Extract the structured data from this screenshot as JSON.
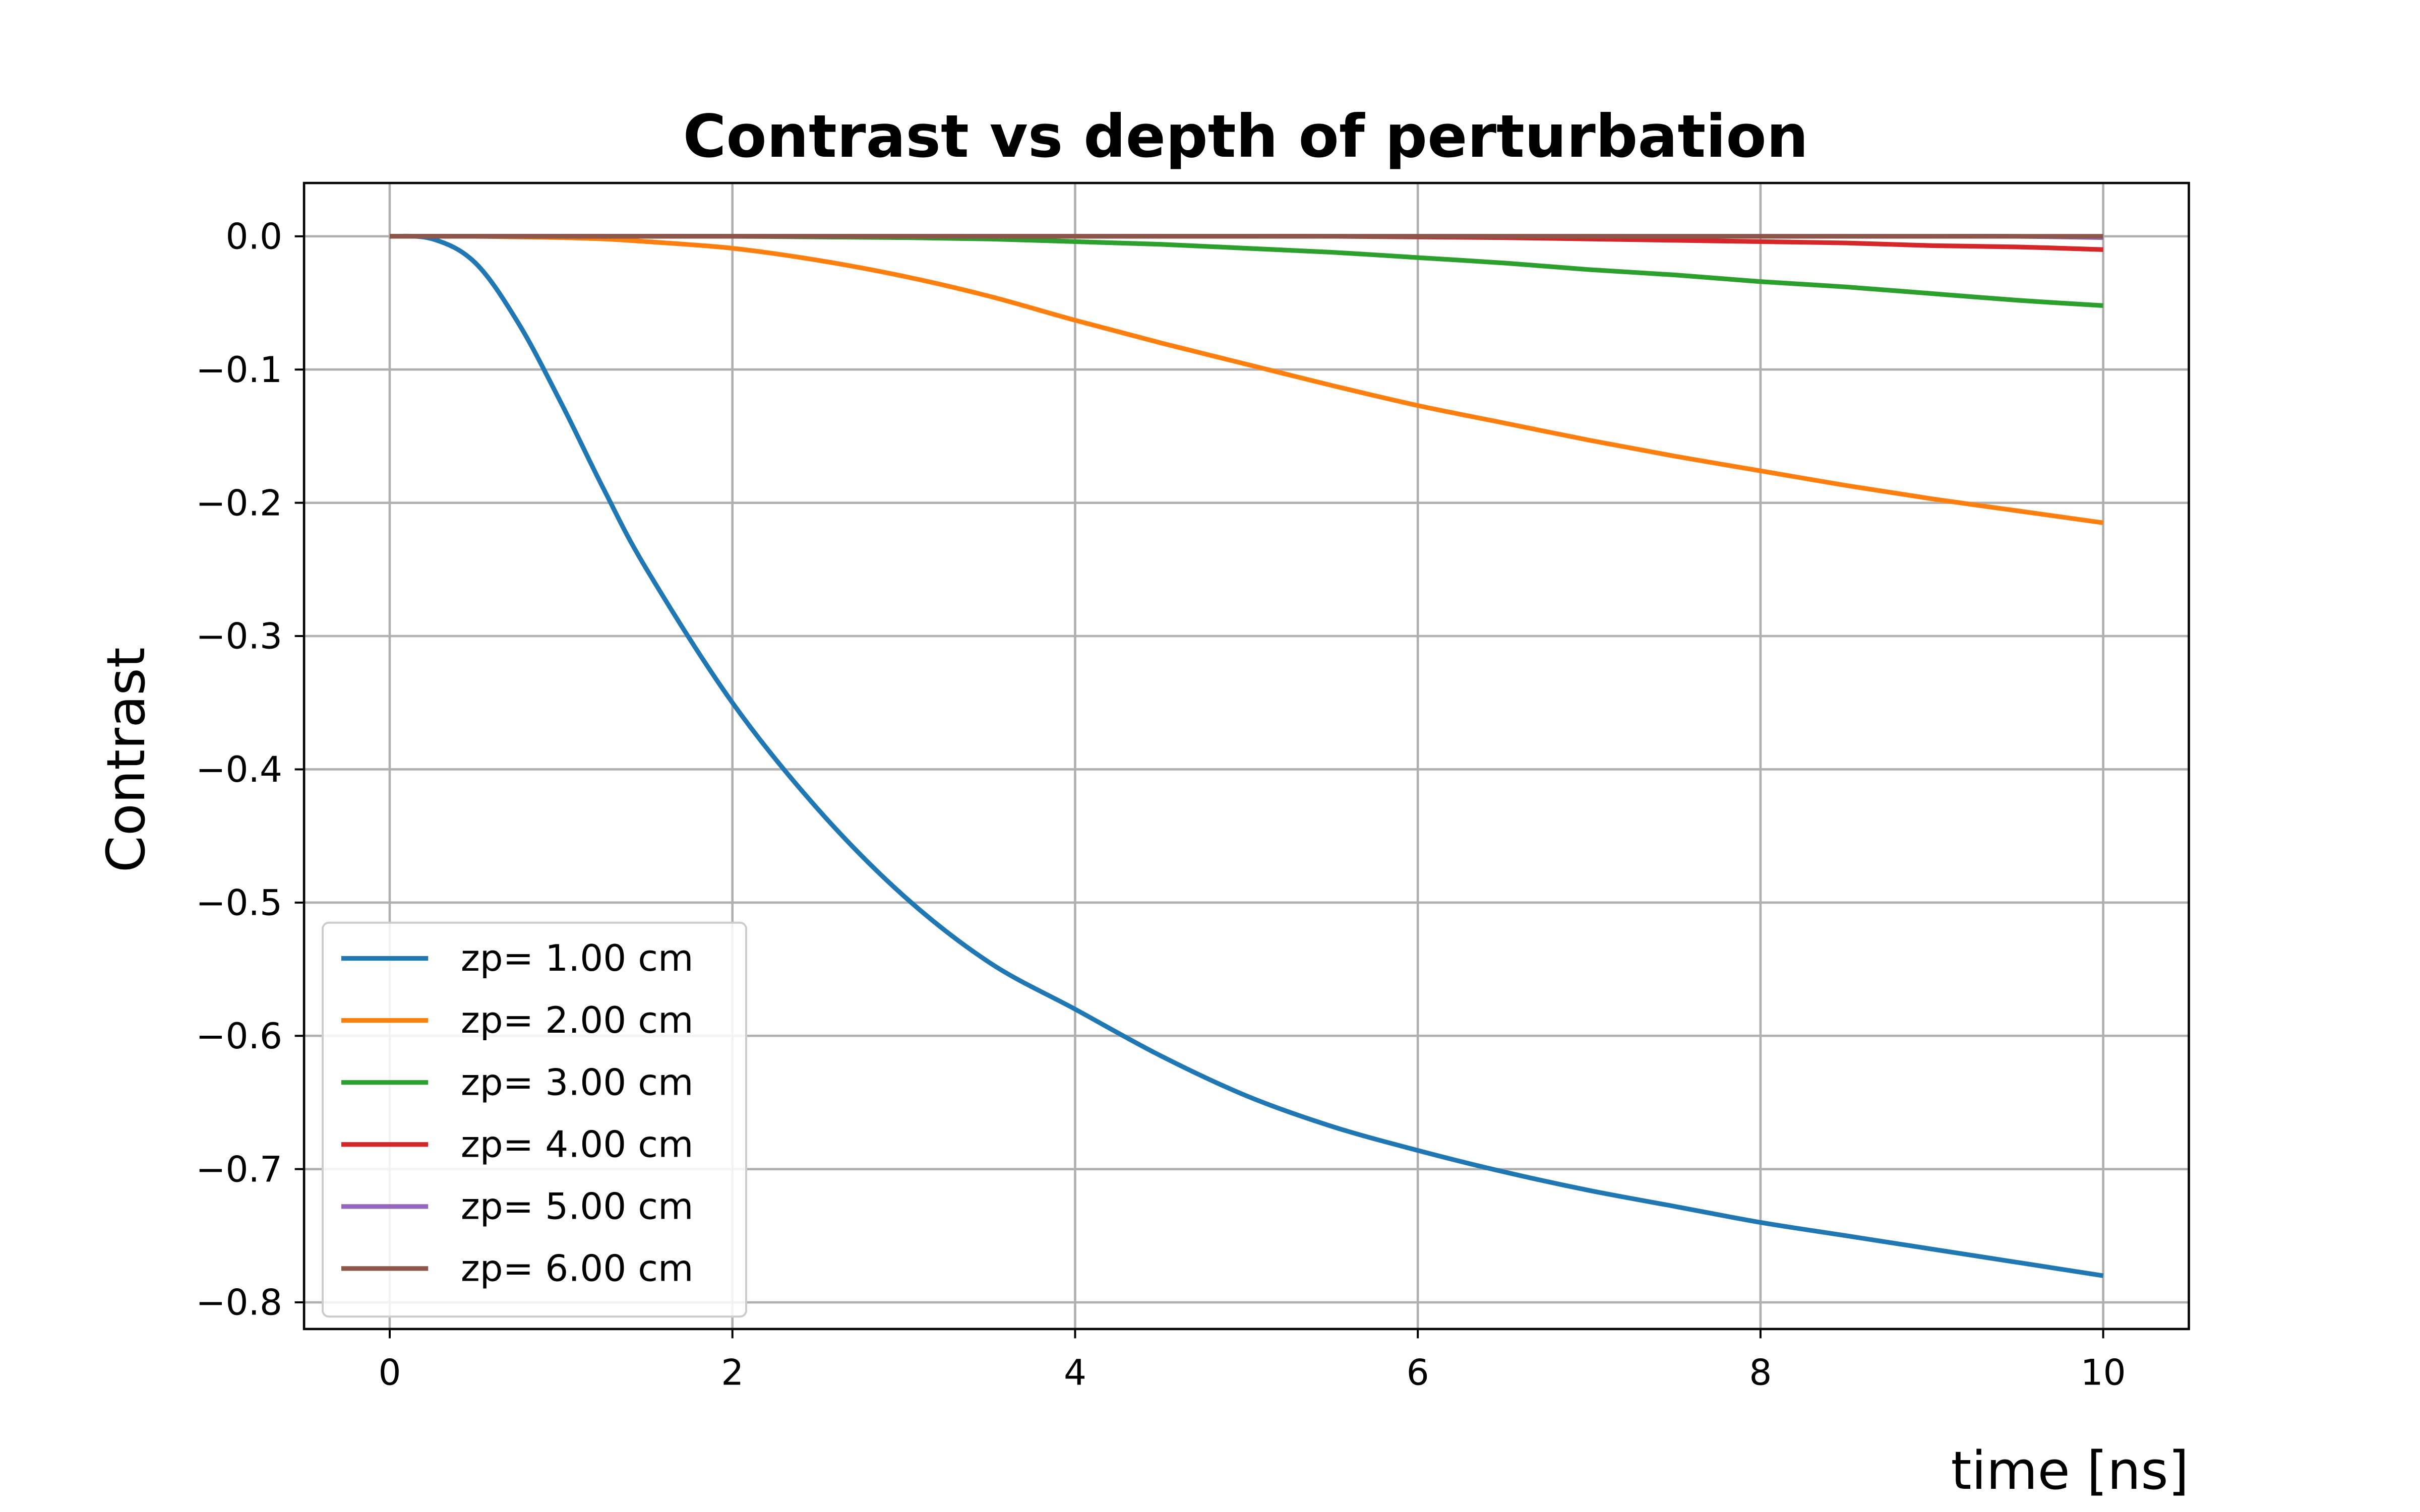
{
  "chart_data": {
    "type": "line",
    "title": "Contrast vs depth of perturbation",
    "xlabel": "time [ns]",
    "ylabel": "Contrast",
    "xlim": [
      -0.5,
      10.5
    ],
    "ylim": [
      -0.82,
      0.04
    ],
    "xticks": [
      0,
      2,
      4,
      6,
      8,
      10
    ],
    "xtick_labels": [
      "0",
      "2",
      "4",
      "6",
      "8",
      "10"
    ],
    "yticks": [
      0.0,
      -0.1,
      -0.2,
      -0.3,
      -0.4,
      -0.5,
      -0.6,
      -0.7,
      -0.8
    ],
    "ytick_labels": [
      "0.0",
      "−0.1",
      "−0.2",
      "−0.3",
      "−0.4",
      "−0.5",
      "−0.6",
      "−0.7",
      "−0.8"
    ],
    "grid": true,
    "legend_position": "lower-left",
    "x": [
      0,
      0.25,
      0.5,
      0.75,
      1,
      1.25,
      1.5,
      2,
      2.5,
      3,
      3.5,
      4,
      4.5,
      5,
      5.5,
      6,
      6.5,
      7,
      7.5,
      8,
      8.5,
      9,
      9.5,
      10
    ],
    "series": [
      {
        "name": "zp= 1.00 cm",
        "color": "#1f77b4",
        "values": [
          0,
          -0.002,
          -0.02,
          -0.065,
          -0.125,
          -0.19,
          -0.25,
          -0.35,
          -0.43,
          -0.495,
          -0.545,
          -0.58,
          -0.615,
          -0.645,
          -0.668,
          -0.686,
          -0.702,
          -0.716,
          -0.728,
          -0.74,
          -0.75,
          -0.76,
          -0.77,
          -0.78
        ]
      },
      {
        "name": "zp= 2.00 cm",
        "color": "#ff7f0e",
        "values": [
          0,
          0,
          0,
          -0.0005,
          -0.001,
          -0.002,
          -0.004,
          -0.009,
          -0.018,
          -0.03,
          -0.045,
          -0.063,
          -0.08,
          -0.096,
          -0.112,
          -0.127,
          -0.14,
          -0.153,
          -0.165,
          -0.176,
          -0.187,
          -0.197,
          -0.206,
          -0.215
        ]
      },
      {
        "name": "zp= 3.00 cm",
        "color": "#2ca02c",
        "values": [
          0,
          0,
          0,
          0,
          0,
          0,
          0,
          0,
          -0.0005,
          -0.001,
          -0.002,
          -0.004,
          -0.006,
          -0.009,
          -0.012,
          -0.016,
          -0.02,
          -0.025,
          -0.029,
          -0.034,
          -0.038,
          -0.043,
          -0.048,
          -0.052
        ]
      },
      {
        "name": "zp= 4.00 cm",
        "color": "#d62728",
        "values": [
          0,
          0,
          0,
          0,
          0,
          0,
          0,
          0,
          0,
          0,
          0,
          0,
          0,
          0,
          0,
          -0.0005,
          -0.001,
          -0.002,
          -0.003,
          -0.004,
          -0.005,
          -0.007,
          -0.008,
          -0.01
        ]
      },
      {
        "name": "zp= 5.00 cm",
        "color": "#9467bd",
        "values": [
          0,
          0,
          0,
          0,
          0,
          0,
          0,
          0,
          0,
          0,
          0,
          0,
          0,
          0,
          0,
          0,
          0,
          0,
          0,
          0,
          0,
          0,
          0,
          -0.001
        ]
      },
      {
        "name": "zp= 6.00 cm",
        "color": "#8c564b",
        "values": [
          0,
          0,
          0,
          0,
          0,
          0,
          0,
          0,
          0,
          0,
          0,
          0,
          0,
          0,
          0,
          0,
          0,
          0,
          0,
          0,
          0,
          0,
          0,
          0
        ]
      }
    ]
  }
}
